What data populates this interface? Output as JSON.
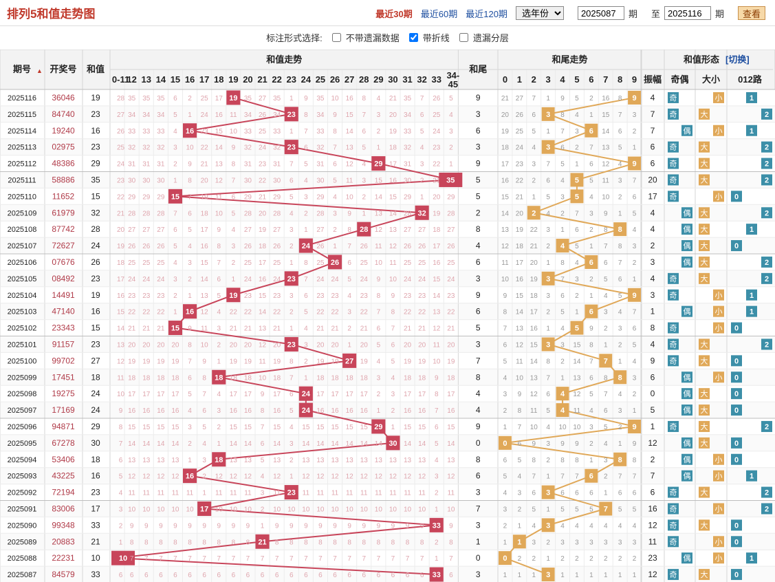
{
  "header": {
    "title": "排列5和值走势图",
    "periods": [
      "最近30期",
      "最近60期",
      "最近120期"
    ],
    "year_select": "选年份",
    "from_value": "2025087",
    "to_value": "2025116",
    "label_qi": "期",
    "label_zhi": "至",
    "view_button": "查看"
  },
  "options": {
    "label": "标注形式选择:",
    "items": [
      {
        "label": "不带遗漏数据",
        "checked": false
      },
      {
        "label": "带折线",
        "checked": true
      },
      {
        "label": "遗漏分层",
        "checked": false
      }
    ]
  },
  "columns": {
    "issue": "期号",
    "draw": "开奖号",
    "sum": "和值",
    "trend": "和值走势",
    "tail": "和尾",
    "tail_trend": "和尾走势",
    "form": "和值形态",
    "switch": "[切换]",
    "amp": "振幅",
    "odd_even": "奇偶",
    "big_small": "大小",
    "route": "012路"
  },
  "trend_bins": [
    "0-11",
    "12",
    "13",
    "14",
    "15",
    "16",
    "17",
    "18",
    "19",
    "20",
    "21",
    "22",
    "23",
    "24",
    "25",
    "26",
    "27",
    "28",
    "29",
    "30",
    "31",
    "32",
    "33",
    "34-45"
  ],
  "colors": {
    "red": "#c8455a",
    "orange": "#e0a858",
    "blue": "#3c8fa8"
  },
  "chart_data": {
    "type": "table",
    "rows": [
      {
        "issue": "2025116",
        "draw": "36046",
        "sum": 19,
        "amp": 4,
        "oe": "奇",
        "bs": "小",
        "route": 1
      },
      {
        "issue": "2025115",
        "draw": "84740",
        "sum": 23,
        "amp": 7,
        "oe": "奇",
        "bs": "大",
        "route": 2
      },
      {
        "issue": "2025114",
        "draw": "19240",
        "sum": 16,
        "amp": 7,
        "oe": "偶",
        "bs": "小",
        "route": 1
      },
      {
        "issue": "2025113",
        "draw": "02975",
        "sum": 23,
        "amp": 6,
        "oe": "奇",
        "bs": "大",
        "route": 2
      },
      {
        "issue": "2025112",
        "draw": "48386",
        "sum": 29,
        "amp": 6,
        "oe": "奇",
        "bs": "大",
        "route": 2
      },
      {
        "issue": "2025111",
        "draw": "58886",
        "sum": 35,
        "amp": 20,
        "oe": "奇",
        "bs": "大",
        "route": 2
      },
      {
        "issue": "2025110",
        "draw": "11652",
        "sum": 15,
        "amp": 17,
        "oe": "奇",
        "bs": "小",
        "route": 0
      },
      {
        "issue": "2025109",
        "draw": "61979",
        "sum": 32,
        "amp": 4,
        "oe": "偶",
        "bs": "大",
        "route": 2
      },
      {
        "issue": "2025108",
        "draw": "87742",
        "sum": 28,
        "amp": 4,
        "oe": "偶",
        "bs": "大",
        "route": 1
      },
      {
        "issue": "2025107",
        "draw": "72627",
        "sum": 24,
        "amp": 2,
        "oe": "偶",
        "bs": "大",
        "route": 0
      },
      {
        "issue": "2025106",
        "draw": "07676",
        "sum": 26,
        "amp": 3,
        "oe": "偶",
        "bs": "大",
        "route": 2
      },
      {
        "issue": "2025105",
        "draw": "08492",
        "sum": 23,
        "amp": 4,
        "oe": "奇",
        "bs": "大",
        "route": 2
      },
      {
        "issue": "2025104",
        "draw": "14491",
        "sum": 19,
        "amp": 3,
        "oe": "奇",
        "bs": "小",
        "route": 1
      },
      {
        "issue": "2025103",
        "draw": "47140",
        "sum": 16,
        "amp": 1,
        "oe": "偶",
        "bs": "小",
        "route": 1
      },
      {
        "issue": "2025102",
        "draw": "23343",
        "sum": 15,
        "amp": 8,
        "oe": "奇",
        "bs": "小",
        "route": 0
      },
      {
        "issue": "2025101",
        "draw": "91157",
        "sum": 23,
        "amp": 4,
        "oe": "奇",
        "bs": "大",
        "route": 2
      },
      {
        "issue": "2025100",
        "draw": "99702",
        "sum": 27,
        "amp": 9,
        "oe": "奇",
        "bs": "大",
        "route": 0
      },
      {
        "issue": "2025099",
        "draw": "17451",
        "sum": 18,
        "amp": 6,
        "oe": "偶",
        "bs": "小",
        "route": 0
      },
      {
        "issue": "2025098",
        "draw": "19275",
        "sum": 24,
        "amp": 0,
        "oe": "偶",
        "bs": "大",
        "route": 0
      },
      {
        "issue": "2025097",
        "draw": "17169",
        "sum": 24,
        "amp": 5,
        "oe": "偶",
        "bs": "大",
        "route": 0
      },
      {
        "issue": "2025096",
        "draw": "94871",
        "sum": 29,
        "amp": 1,
        "oe": "奇",
        "bs": "大",
        "route": 2
      },
      {
        "issue": "2025095",
        "draw": "67278",
        "sum": 30,
        "amp": 12,
        "oe": "偶",
        "bs": "大",
        "route": 0
      },
      {
        "issue": "2025094",
        "draw": "53406",
        "sum": 18,
        "amp": 2,
        "oe": "偶",
        "bs": "小",
        "route": 0
      },
      {
        "issue": "2025093",
        "draw": "43225",
        "sum": 16,
        "amp": 7,
        "oe": "偶",
        "bs": "小",
        "route": 1
      },
      {
        "issue": "2025092",
        "draw": "72194",
        "sum": 23,
        "amp": 6,
        "oe": "奇",
        "bs": "大",
        "route": 2
      },
      {
        "issue": "2025091",
        "draw": "83006",
        "sum": 17,
        "amp": 16,
        "oe": "奇",
        "bs": "小",
        "route": 2
      },
      {
        "issue": "2025090",
        "draw": "99348",
        "sum": 33,
        "amp": 12,
        "oe": "奇",
        "bs": "大",
        "route": 0
      },
      {
        "issue": "2025089",
        "draw": "20883",
        "sum": 21,
        "amp": 11,
        "oe": "奇",
        "bs": "小",
        "route": 0
      },
      {
        "issue": "2025088",
        "draw": "22231",
        "sum": 10,
        "amp": 23,
        "oe": "偶",
        "bs": "小",
        "route": 1
      },
      {
        "issue": "2025087",
        "draw": "84579",
        "sum": 33,
        "amp": 12,
        "oe": "奇",
        "bs": "大",
        "route": 0
      }
    ]
  }
}
